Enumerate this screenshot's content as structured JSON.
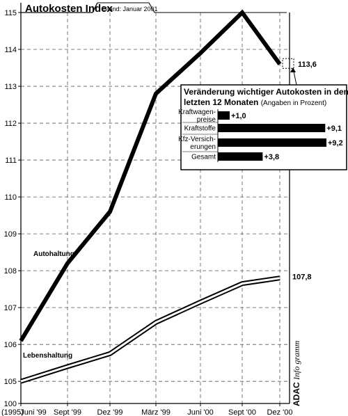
{
  "chart_data": [
    {
      "type": "line",
      "title": "Autokosten Index",
      "subtitle": "Stand: Januar 2001",
      "x": [
        "Juni '99",
        "Sept '99",
        "Dez '99",
        "März '99",
        "Juni '00",
        "Sept '00",
        "Dez '00"
      ],
      "origin_label": "(1995)",
      "ylim": [
        100,
        115
      ],
      "yticks": [
        "100",
        "105",
        "106",
        "107",
        "108",
        "109",
        "110",
        "111",
        "112",
        "113",
        "114",
        "115"
      ],
      "grid": true,
      "series": [
        {
          "name": "Autohaltung",
          "values": [
            106.1,
            108.2,
            109.6,
            112.8,
            113.9,
            115.0,
            113.6
          ]
        },
        {
          "name": "Lebenshaltung",
          "values": [
            105.0,
            105.4,
            105.75,
            106.6,
            107.15,
            107.65,
            107.8
          ]
        }
      ],
      "end_labels": [
        "113,6",
        "107,8"
      ],
      "source": {
        "brand": "ADAC",
        "sub": "Info",
        "sub2": "gramm"
      }
    },
    {
      "type": "bar",
      "title": "Veränderung wichtiger Autokosten in den letzten 12 Monaten",
      "subtitle": "(Angaben in Prozent)",
      "categories": [
        [
          "Kraftwagen-",
          "preise"
        ],
        [
          "Kraftstoffe"
        ],
        [
          "Kfz-Versich-",
          "erungen"
        ],
        [
          "Gesamt"
        ]
      ],
      "values": [
        1.0,
        9.1,
        9.2,
        3.8
      ],
      "value_labels": [
        "+1,0",
        "+9,1",
        "+9,2",
        "+3,8"
      ]
    }
  ]
}
